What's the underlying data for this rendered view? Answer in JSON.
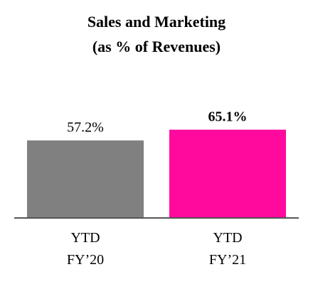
{
  "chart_data": {
    "type": "bar",
    "title": "Sales and Marketing",
    "subtitle": "(as % of Revenues)",
    "categories": [
      "YTD FY’20",
      "YTD FY’21"
    ],
    "values": [
      57.2,
      65.1
    ],
    "value_labels": [
      "57.2%",
      "65.1%"
    ],
    "colors": [
      "#808080",
      "#ff0a9c"
    ],
    "ylim": [
      0,
      100
    ]
  }
}
